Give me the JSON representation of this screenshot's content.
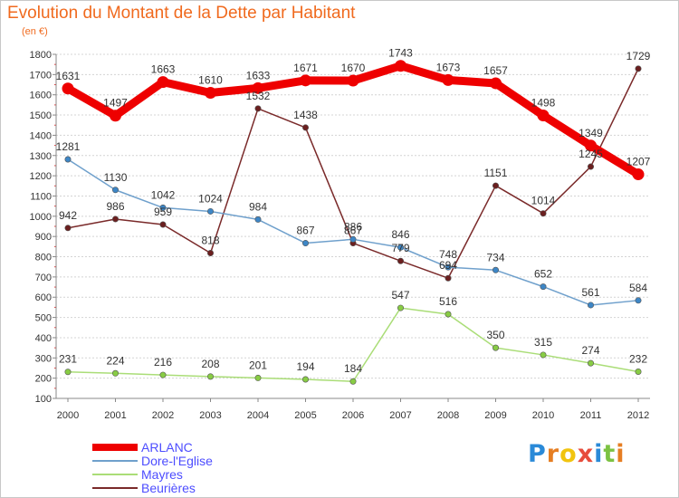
{
  "header": {
    "title": "Evolution du Montant de la Dette par Habitant",
    "unit": "(en €)"
  },
  "colors": {
    "title": "#f06a1e",
    "axis": "#888888",
    "grid": "#d4d4d4",
    "tick_label": "#333333",
    "data_label": "#333333",
    "legend_text": "#4d4dff",
    "plot_bg": "#ffffff"
  },
  "logo": {
    "letters": [
      "P",
      "r",
      "o",
      "x",
      "i",
      "t",
      "i"
    ],
    "colors": [
      "#2a8ad8",
      "#e67e22",
      "#f1c40f",
      "#e74c3c",
      "#2a8ad8",
      "#7cc242",
      "#e67e22"
    ]
  },
  "chart_data": {
    "type": "line",
    "title": "Evolution du Montant de la Dette par Habitant",
    "subtitle": "(en €)",
    "xlabel": "",
    "ylabel": "",
    "x": [
      "2000",
      "2001",
      "2002",
      "2003",
      "2004",
      "2005",
      "2006",
      "2007",
      "2008",
      "2009",
      "2010",
      "2011",
      "2012"
    ],
    "ylim": [
      100,
      1800
    ],
    "yticks": [
      100,
      200,
      300,
      400,
      500,
      600,
      700,
      800,
      900,
      1000,
      1100,
      1200,
      1300,
      1400,
      1500,
      1600,
      1700,
      1800
    ],
    "grid": "horizontal",
    "legend_position": "bottom-left",
    "series": [
      {
        "name": "ARLANC",
        "color": "#ee0000",
        "marker": "#ee0000",
        "emphasis": true,
        "values": [
          1631,
          1497,
          1663,
          1610,
          1633,
          1671,
          1670,
          1743,
          1673,
          1657,
          1498,
          1349,
          1207
        ]
      },
      {
        "name": "Dore-l'Eglise",
        "color": "#6fa0cc",
        "marker": "#3d86c6",
        "values": [
          1281,
          1130,
          1042,
          1024,
          984,
          867,
          886,
          846,
          748,
          734,
          652,
          561,
          584
        ]
      },
      {
        "name": "Mayres",
        "color": "#aadd77",
        "marker": "#88cc44",
        "values": [
          231,
          224,
          216,
          208,
          201,
          194,
          184,
          547,
          516,
          350,
          315,
          274,
          232
        ]
      },
      {
        "name": "Beurières",
        "color": "#7a2a2a",
        "marker": "#6b1f1f",
        "values": [
          942,
          986,
          959,
          818,
          1532,
          1438,
          867,
          779,
          694,
          1151,
          1014,
          1245,
          1729
        ]
      }
    ]
  }
}
